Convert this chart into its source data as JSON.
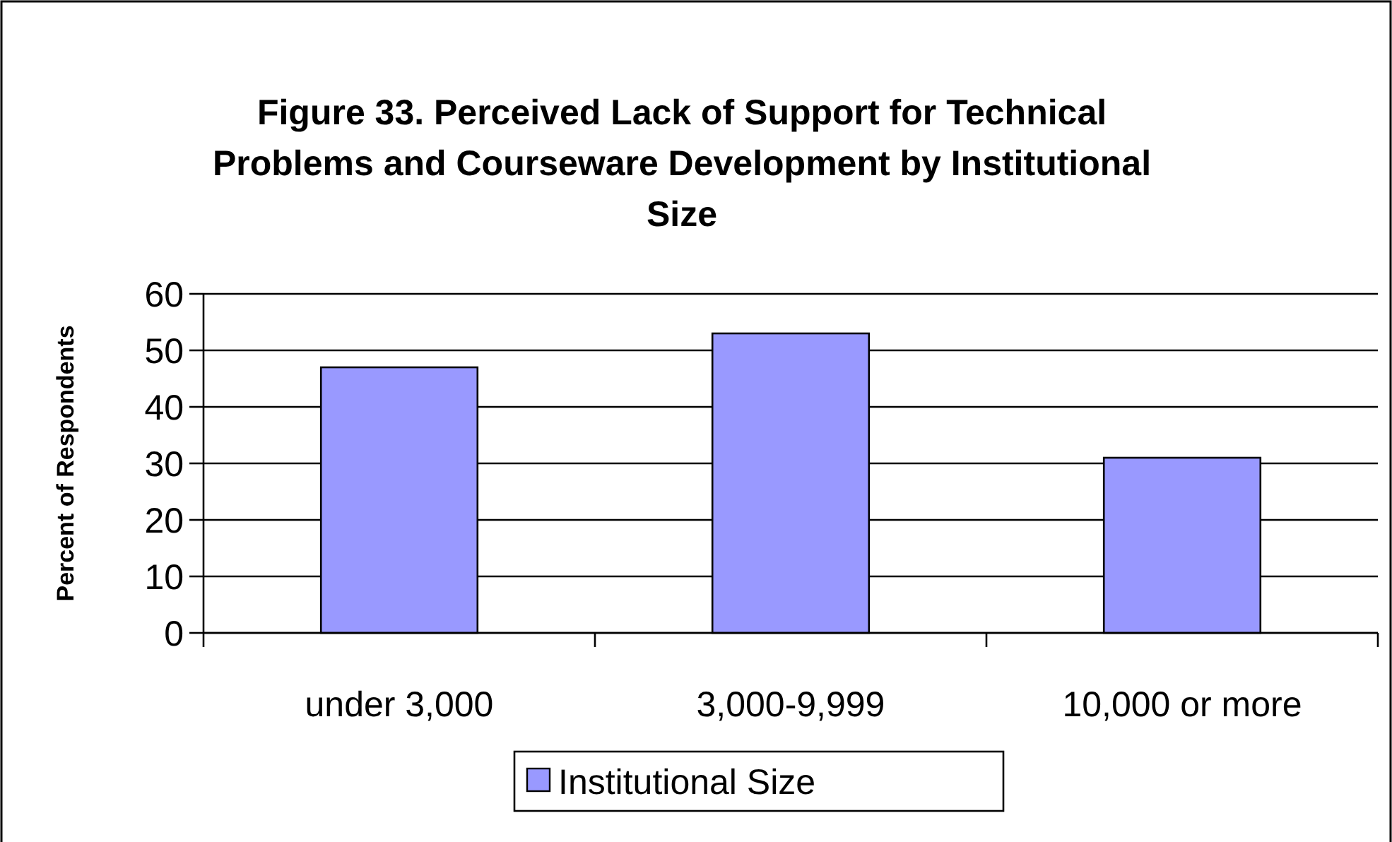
{
  "chart_data": {
    "type": "bar",
    "title": "Figure 33. Perceived Lack of Support for Technical Problems and Courseware Development by Institutional Size",
    "ylabel": "Percent of Respondents",
    "categories": [
      "under 3,000",
      "3,000-9,999",
      "10,000 or more"
    ],
    "series": [
      {
        "name": "Institutional Size",
        "color": "#9999ff",
        "values": [
          47,
          53,
          31
        ]
      }
    ],
    "ylim": [
      0,
      60
    ],
    "yticks": [
      0,
      10,
      20,
      30,
      40,
      50,
      60
    ],
    "grid": "y",
    "legend": "bottom"
  }
}
